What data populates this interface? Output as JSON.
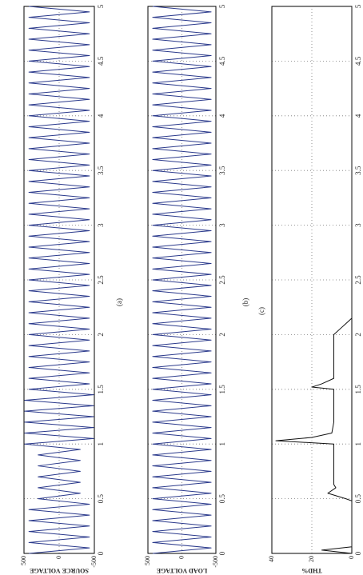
{
  "chart_data": [
    {
      "type": "line",
      "caption": "(a)",
      "ylabel": "SOURCE VOLTAGE",
      "xlim": [
        0,
        5
      ],
      "xticks": [
        0,
        0.5,
        1,
        1.5,
        2,
        2.5,
        3,
        3.5,
        4,
        4.5,
        5
      ],
      "ylim": [
        -500,
        500
      ],
      "yticks": [
        -500,
        0,
        500
      ],
      "grid": true,
      "x": [
        0,
        0.05,
        0.1,
        0.15,
        0.2,
        0.25,
        0.3,
        0.35,
        0.4,
        0.45,
        0.5,
        0.55,
        0.6,
        0.65,
        0.7,
        0.75,
        0.8,
        0.85,
        0.9,
        0.95,
        1,
        1.05,
        1.1,
        1.15,
        1.2,
        1.25,
        1.3,
        1.35,
        1.4,
        1.45,
        1.5,
        1.55,
        1.6,
        1.65,
        1.7,
        1.75,
        1.8,
        1.85,
        1.9,
        1.95,
        2,
        2.05,
        2.1,
        2.15,
        2.2,
        2.25,
        2.3,
        2.35,
        2.4,
        2.45,
        2.5,
        2.55,
        2.6,
        2.65,
        2.7,
        2.75,
        2.8,
        2.85,
        2.9,
        2.95,
        3,
        3.05,
        3.1,
        3.15,
        3.2,
        3.25,
        3.3,
        3.35,
        3.4,
        3.45,
        3.5,
        3.55,
        3.6,
        3.65,
        3.7,
        3.75,
        3.8,
        3.85,
        3.9,
        3.95,
        4,
        4.05,
        4.1,
        4.15,
        4.2,
        4.25,
        4.3,
        4.35,
        4.4,
        4.45,
        4.5,
        4.55,
        4.6,
        4.65,
        4.7,
        4.75,
        4.8,
        4.85,
        4.9,
        4.95,
        5
      ],
      "series": [
        {
          "color": "#2b3a8c",
          "values": [
            430,
            -430,
            430,
            -430,
            430,
            -430,
            430,
            -430,
            430,
            -430,
            300,
            -300,
            300,
            -300,
            300,
            -300,
            300,
            -300,
            300,
            -300,
            490,
            -490,
            490,
            -490,
            490,
            -490,
            490,
            -490,
            490,
            -490,
            430,
            -430,
            430,
            -430,
            430,
            -430,
            430,
            -430,
            430,
            -430,
            430,
            -430,
            430,
            -430,
            430,
            -430,
            430,
            -430,
            430,
            -430,
            430,
            -430,
            430,
            -430,
            430,
            -430,
            430,
            -430,
            430,
            -430,
            430,
            -430,
            430,
            -430,
            430,
            -430,
            430,
            -430,
            430,
            -430,
            430,
            -430,
            430,
            -430,
            430,
            -430,
            430,
            -430,
            430,
            -430,
            430,
            -430,
            430,
            -430,
            430,
            -430,
            430,
            -430,
            430,
            -430,
            430,
            -430,
            430,
            -430,
            430,
            -430,
            430,
            -430,
            430,
            -430,
            430
          ]
        }
      ]
    },
    {
      "type": "line",
      "caption": "(b)",
      "ylabel": "LOAD VOLTAGE",
      "xlim": [
        0,
        5
      ],
      "xticks": [
        0,
        0.5,
        1,
        1.5,
        2,
        2.5,
        3,
        3.5,
        4,
        4.5,
        5
      ],
      "ylim": [
        -500,
        500
      ],
      "yticks": [
        -500,
        0,
        500
      ],
      "grid": true,
      "x": [
        0,
        0.05,
        0.1,
        0.15,
        0.2,
        0.25,
        0.3,
        0.35,
        0.4,
        0.45,
        0.5,
        0.55,
        0.6,
        0.65,
        0.7,
        0.75,
        0.8,
        0.85,
        0.9,
        0.95,
        1,
        1.05,
        1.1,
        1.15,
        1.2,
        1.25,
        1.3,
        1.35,
        1.4,
        1.45,
        1.5,
        1.55,
        1.6,
        1.65,
        1.7,
        1.75,
        1.8,
        1.85,
        1.9,
        1.95,
        2,
        2.05,
        2.1,
        2.15,
        2.2,
        2.25,
        2.3,
        2.35,
        2.4,
        2.45,
        2.5,
        2.55,
        2.6,
        2.65,
        2.7,
        2.75,
        2.8,
        2.85,
        2.9,
        2.95,
        3,
        3.05,
        3.1,
        3.15,
        3.2,
        3.25,
        3.3,
        3.35,
        3.4,
        3.45,
        3.5,
        3.55,
        3.6,
        3.65,
        3.7,
        3.75,
        3.8,
        3.85,
        3.9,
        3.95,
        4,
        4.05,
        4.1,
        4.15,
        4.2,
        4.25,
        4.3,
        4.35,
        4.4,
        4.45,
        4.5,
        4.55,
        4.6,
        4.65,
        4.7,
        4.75,
        4.8,
        4.85,
        4.9,
        4.95,
        5
      ],
      "series": [
        {
          "color": "#2b3a8c",
          "values": [
            430,
            -430,
            430,
            -430,
            430,
            -430,
            430,
            -430,
            430,
            -430,
            430,
            -430,
            430,
            -430,
            430,
            -430,
            430,
            -430,
            430,
            -430,
            430,
            -430,
            430,
            -430,
            430,
            -430,
            430,
            -430,
            430,
            -430,
            430,
            -430,
            430,
            -430,
            430,
            -430,
            430,
            -430,
            430,
            -430,
            430,
            -430,
            430,
            -430,
            430,
            -430,
            430,
            -430,
            430,
            -430,
            430,
            -430,
            430,
            -430,
            430,
            -430,
            430,
            -430,
            430,
            -430,
            430,
            -430,
            430,
            -430,
            430,
            -430,
            430,
            -430,
            430,
            -430,
            430,
            -430,
            430,
            -430,
            430,
            -430,
            430,
            -430,
            430,
            -430,
            430,
            -430,
            430,
            -430,
            430,
            -430,
            430,
            -430,
            430,
            -430,
            430,
            -430,
            430,
            -430,
            430,
            -430,
            430,
            -430,
            430,
            -430,
            430
          ]
        }
      ]
    },
    {
      "type": "line",
      "caption": "(c)",
      "ylabel": "THD%",
      "xlim": [
        0,
        5
      ],
      "xticks": [
        0,
        0.5,
        1,
        1.5,
        2,
        2.5,
        3,
        3.5,
        4,
        4.5,
        5
      ],
      "ylim": [
        0,
        40
      ],
      "yticks": [
        0,
        20,
        40
      ],
      "grid": true,
      "x": [
        0,
        0.03,
        0.06,
        0.1,
        0.48,
        0.5,
        0.55,
        0.6,
        0.63,
        1,
        1.03,
        1.06,
        1.1,
        1.2,
        1.5,
        1.52,
        1.55,
        1.6,
        2,
        2.05,
        2.1,
        2.15,
        5
      ],
      "series": [
        {
          "color": "#111111",
          "values": [
            0,
            15,
            0,
            0,
            0,
            3,
            12,
            8,
            9,
            9,
            38,
            20,
            10,
            9,
            9,
            20,
            15,
            9,
            9,
            6,
            3,
            0,
            0
          ]
        }
      ]
    }
  ]
}
